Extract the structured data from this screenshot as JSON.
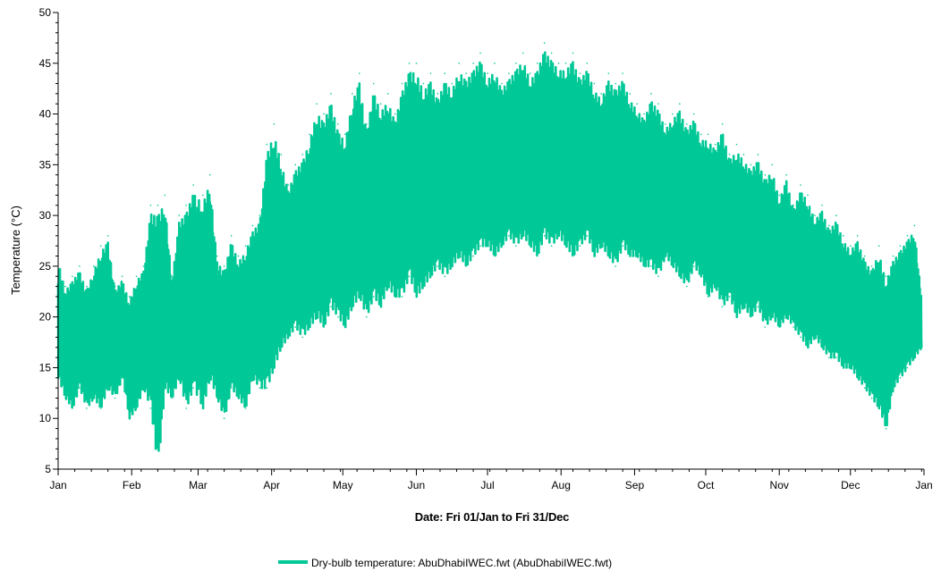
{
  "chart_data": {
    "type": "line",
    "title": "",
    "xlabel": "Date: Fri 01/Jan to Fri 31/Dec",
    "ylabel": "Temperature (°C)",
    "ylim": [
      5,
      50
    ],
    "yticks": [
      "5",
      "10",
      "15",
      "20",
      "25",
      "30",
      "35",
      "40",
      "45",
      "50"
    ],
    "xlim": [
      "2021-01-01",
      "2022-01-01"
    ],
    "xticks": [
      {
        "label": "Jan",
        "date": "2021-01-01"
      },
      {
        "label": "Feb",
        "date": "2021-02-01"
      },
      {
        "label": "Mar",
        "date": "2021-03-01"
      },
      {
        "label": "Apr",
        "date": "2021-04-01"
      },
      {
        "label": "May",
        "date": "2021-05-01"
      },
      {
        "label": "Jun",
        "date": "2021-06-01"
      },
      {
        "label": "Jul",
        "date": "2021-07-01"
      },
      {
        "label": "Aug",
        "date": "2021-08-01"
      },
      {
        "label": "Sep",
        "date": "2021-09-01"
      },
      {
        "label": "Oct",
        "date": "2021-10-01"
      },
      {
        "label": "Nov",
        "date": "2021-11-01"
      },
      {
        "label": "Dec",
        "date": "2021-12-01"
      },
      {
        "label": "Jan",
        "date": "2022-01-01"
      }
    ],
    "grid": false,
    "legend_position": "bottom-center",
    "series": [
      {
        "name": "Dry-bulb temperature: AbuDhabiIWEC.fwt (AbuDhabiIWEC.fwt)",
        "color": "#00C896",
        "x": [
          "2021-01-01",
          "2021-01-04",
          "2021-01-07",
          "2021-01-10",
          "2021-01-13",
          "2021-01-16",
          "2021-01-19",
          "2021-01-22",
          "2021-01-25",
          "2021-01-28",
          "2021-01-31",
          "2021-02-03",
          "2021-02-06",
          "2021-02-09",
          "2021-02-12",
          "2021-02-15",
          "2021-02-18",
          "2021-02-21",
          "2021-02-24",
          "2021-02-27",
          "2021-03-03",
          "2021-03-06",
          "2021-03-09",
          "2021-03-12",
          "2021-03-15",
          "2021-03-18",
          "2021-03-21",
          "2021-03-24",
          "2021-03-27",
          "2021-03-30",
          "2021-04-02",
          "2021-04-05",
          "2021-04-08",
          "2021-04-11",
          "2021-04-14",
          "2021-04-17",
          "2021-04-20",
          "2021-04-23",
          "2021-04-26",
          "2021-04-29",
          "2021-05-02",
          "2021-05-05",
          "2021-05-08",
          "2021-05-11",
          "2021-05-14",
          "2021-05-17",
          "2021-05-20",
          "2021-05-23",
          "2021-05-26",
          "2021-05-29",
          "2021-06-01",
          "2021-06-04",
          "2021-06-07",
          "2021-06-10",
          "2021-06-13",
          "2021-06-16",
          "2021-06-19",
          "2021-06-22",
          "2021-06-25",
          "2021-06-28",
          "2021-07-01",
          "2021-07-04",
          "2021-07-07",
          "2021-07-10",
          "2021-07-13",
          "2021-07-16",
          "2021-07-19",
          "2021-07-22",
          "2021-07-25",
          "2021-07-28",
          "2021-07-31",
          "2021-08-03",
          "2021-08-06",
          "2021-08-09",
          "2021-08-12",
          "2021-08-15",
          "2021-08-18",
          "2021-08-21",
          "2021-08-24",
          "2021-08-27",
          "2021-08-30",
          "2021-09-02",
          "2021-09-05",
          "2021-09-08",
          "2021-09-11",
          "2021-09-14",
          "2021-09-17",
          "2021-09-20",
          "2021-09-23",
          "2021-09-26",
          "2021-09-29",
          "2021-10-02",
          "2021-10-05",
          "2021-10-08",
          "2021-10-11",
          "2021-10-14",
          "2021-10-17",
          "2021-10-20",
          "2021-10-23",
          "2021-10-26",
          "2021-10-29",
          "2021-11-01",
          "2021-11-04",
          "2021-11-07",
          "2021-11-10",
          "2021-11-13",
          "2021-11-16",
          "2021-11-19",
          "2021-11-22",
          "2021-11-25",
          "2021-11-28",
          "2021-12-01",
          "2021-12-04",
          "2021-12-07",
          "2021-12-10",
          "2021-12-13",
          "2021-12-16",
          "2021-12-19",
          "2021-12-22",
          "2021-12-25",
          "2021-12-28",
          "2021-12-31"
        ],
        "y_min": [
          14,
          12,
          11,
          13,
          11,
          12,
          11,
          13,
          12,
          14,
          10,
          11,
          13,
          11,
          5,
          13,
          12,
          14,
          11,
          13,
          11,
          14,
          12,
          10,
          13,
          12,
          11,
          14,
          13,
          13,
          15,
          17,
          18,
          19,
          18,
          19,
          20,
          19,
          21,
          20,
          19,
          21,
          22,
          20,
          22,
          21,
          23,
          22,
          22,
          24,
          22,
          23,
          24,
          25,
          24,
          25,
          26,
          25,
          26,
          27,
          27,
          26,
          27,
          28,
          27,
          28,
          27,
          26,
          28,
          27,
          28,
          27,
          26,
          27,
          28,
          26,
          27,
          26,
          25,
          27,
          26,
          26,
          25,
          25,
          24,
          26,
          25,
          24,
          23,
          25,
          24,
          22,
          23,
          21,
          22,
          20,
          21,
          20,
          21,
          19,
          20,
          19,
          20,
          19,
          18,
          17,
          18,
          17,
          16,
          16,
          15,
          15,
          14,
          13,
          12,
          11,
          9,
          13,
          14,
          15,
          16,
          17
        ],
        "y_max": [
          26,
          23,
          24,
          25,
          23,
          25,
          27,
          28,
          23,
          24,
          22,
          24,
          25,
          31,
          31,
          32,
          24,
          30,
          31,
          33,
          32,
          34,
          26,
          25,
          28,
          26,
          27,
          29,
          30,
          37,
          39,
          36,
          33,
          35,
          36,
          38,
          41,
          40,
          42,
          39,
          38,
          42,
          44,
          39,
          43,
          41,
          42,
          40,
          43,
          45,
          45,
          43,
          44,
          42,
          44,
          43,
          45,
          44,
          45,
          46,
          44,
          45,
          43,
          44,
          45,
          46,
          44,
          45,
          47,
          46,
          45,
          45,
          46,
          44,
          45,
          43,
          42,
          44,
          43,
          44,
          42,
          41,
          40,
          42,
          41,
          39,
          40,
          41,
          39,
          40,
          38,
          38,
          37,
          39,
          36,
          37,
          36,
          35,
          36,
          34,
          35,
          32,
          34,
          31,
          33,
          32,
          30,
          31,
          29,
          30,
          28,
          27,
          28,
          26,
          25,
          27,
          24,
          26,
          27,
          28,
          29,
          22
        ]
      }
    ]
  }
}
